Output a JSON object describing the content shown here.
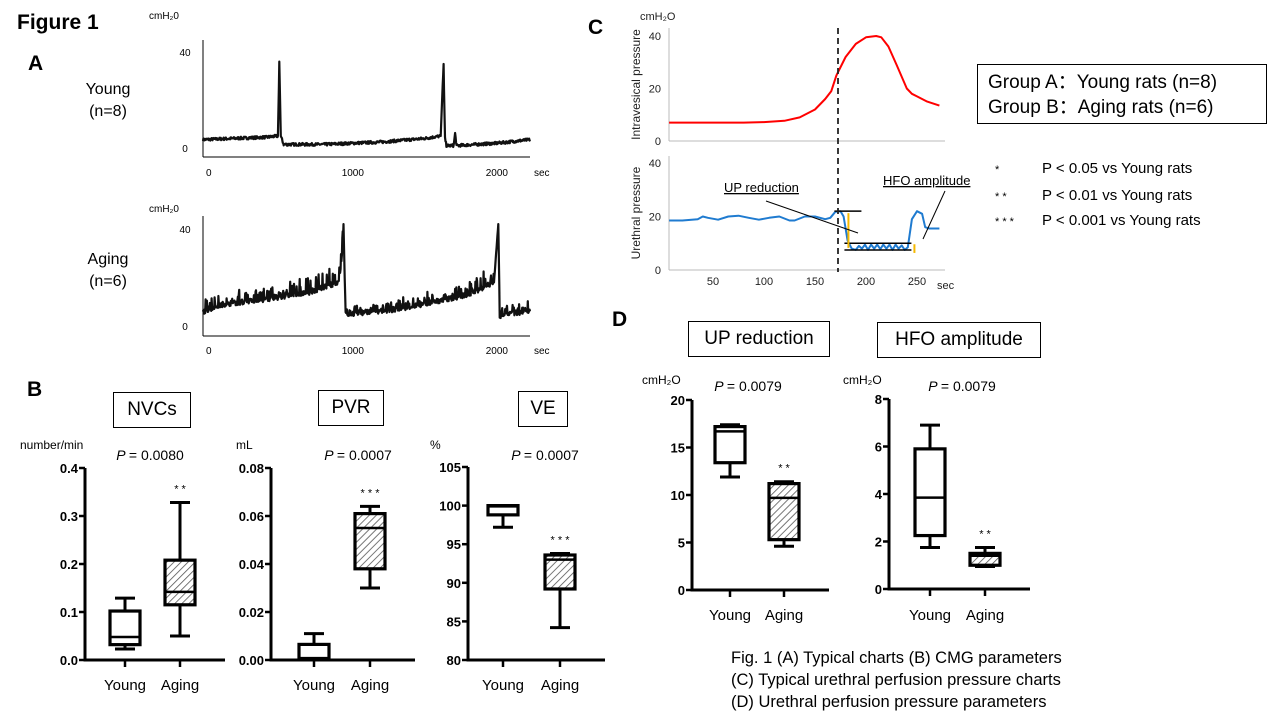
{
  "figure": {
    "title": "Figure 1",
    "panels": {
      "A": "A",
      "B": "B",
      "C": "C",
      "D": "D"
    },
    "caption": [
      "Fig. 1 (A) Typical charts (B) CMG parameters",
      "(C) Typical urethral perfusion pressure charts",
      "(D) Urethral perfusion pressure parameters"
    ],
    "groups_legend": [
      "Group A：Young  rats (n=8)",
      "Group B：Aging  rats (n=6)"
    ],
    "significance_legend": [
      {
        "marker": "*",
        "text": "P < 0.05 vs Young  rats"
      },
      {
        "marker": "* *",
        "text": "P < 0.01 vs Young  rats"
      },
      {
        "marker": "* * *",
        "text": "P < 0.001 vs Young  rats"
      }
    ]
  },
  "chart_data": [
    {
      "id": "A-young",
      "type": "line",
      "panel": "A",
      "group_label": [
        "Young",
        "(n=8)"
      ],
      "ylabel": "cmH₂0",
      "xlabel": "sec",
      "xlim": [
        -40,
        2230
      ],
      "ylim": [
        -3,
        45
      ],
      "yticks": [
        0,
        40
      ],
      "xticks": [
        0,
        1000,
        2000
      ],
      "description": "Cystometrogram trace, baseline ~2-4 cmH2O with voiding spikes",
      "x": [
        -40,
        400,
        480,
        490,
        500,
        520,
        800,
        1200,
        1500,
        1610,
        1630,
        1640,
        1650,
        1670,
        1700,
        1710,
        1720,
        2000,
        2230
      ],
      "y": [
        3.5,
        4.5,
        5,
        36,
        5,
        1.5,
        1.5,
        2.5,
        4,
        5,
        35,
        4,
        1,
        1,
        1,
        6,
        1,
        2,
        3.5
      ],
      "spikes": [
        {
          "x": 490,
          "y": 36
        },
        {
          "x": 1640,
          "y": 35
        }
      ]
    },
    {
      "id": "A-aging",
      "type": "line",
      "panel": "A",
      "group_label": [
        "Aging",
        "(n=6)"
      ],
      "ylabel": "cmH₂0",
      "xlabel": "sec",
      "xlim": [
        -40,
        2230
      ],
      "ylim": [
        -3,
        45
      ],
      "yticks": [
        0,
        40
      ],
      "xticks": [
        0,
        1000,
        2000
      ],
      "description": "Cystometrogram trace with non-voiding contractions and rising baseline",
      "x": [
        -40,
        100,
        400,
        700,
        900,
        930,
        935,
        950,
        1200,
        1500,
        1800,
        1980,
        2010,
        2020,
        2040,
        2230
      ],
      "y": [
        6,
        9,
        11,
        14,
        18,
        30,
        42,
        5,
        6,
        9,
        13,
        18,
        42,
        4,
        5,
        6
      ],
      "spikes": [
        {
          "x": 935,
          "y": 42
        },
        {
          "x": 2010,
          "y": 42
        }
      ]
    },
    {
      "id": "B-nvcs",
      "type": "box",
      "panel": "B",
      "title": "NVCs",
      "ylabel": "number/min",
      "p_value_label": "P",
      "p_value": "= 0.0080",
      "ylim": [
        0,
        0.4
      ],
      "yticks": [
        "0.0",
        "0.1",
        "0.2",
        "0.3",
        "0.4"
      ],
      "ytick_values": [
        0,
        0.1,
        0.2,
        0.3,
        0.4
      ],
      "categories": [
        "Young",
        "Aging"
      ],
      "boxes": [
        {
          "name": "Young",
          "min": 0.023,
          "q1": 0.032,
          "median": 0.048,
          "q3": 0.102,
          "max": 0.129,
          "hatched": false,
          "sig": ""
        },
        {
          "name": "Aging",
          "min": 0.05,
          "q1": 0.115,
          "median": 0.142,
          "q3": 0.208,
          "max": 0.328,
          "hatched": true,
          "sig": "* *"
        }
      ]
    },
    {
      "id": "B-pvr",
      "type": "box",
      "panel": "B",
      "title": "PVR",
      "ylabel": "mL",
      "p_value_label": "P",
      "p_value": "= 0.0007",
      "ylim": [
        0,
        0.08
      ],
      "yticks": [
        "0.00",
        "0.02",
        "0.04",
        "0.06",
        "0.08"
      ],
      "ytick_values": [
        0,
        0.02,
        0.04,
        0.06,
        0.08
      ],
      "categories": [
        "Young",
        "Aging"
      ],
      "boxes": [
        {
          "name": "Young",
          "min": 0.0,
          "q1": 0.0005,
          "median": 0.0008,
          "q3": 0.0065,
          "max": 0.011,
          "hatched": false,
          "sig": ""
        },
        {
          "name": "Aging",
          "min": 0.03,
          "q1": 0.038,
          "median": 0.055,
          "q3": 0.061,
          "max": 0.064,
          "hatched": true,
          "sig": "* * *"
        }
      ]
    },
    {
      "id": "B-ve",
      "type": "box",
      "panel": "B",
      "title": "VE",
      "ylabel": "%",
      "p_value_label": "P",
      "p_value": "= 0.0007",
      "ylim": [
        80,
        105
      ],
      "yticks": [
        "80",
        "85",
        "90",
        "95",
        "100",
        "105"
      ],
      "ytick_values": [
        80,
        85,
        90,
        95,
        100,
        105
      ],
      "categories": [
        "Young",
        "Aging"
      ],
      "boxes": [
        {
          "name": "Young",
          "min": 97.2,
          "q1": 98.8,
          "median": 99.9,
          "q3": 100,
          "max": 100,
          "hatched": false,
          "sig": ""
        },
        {
          "name": "Aging",
          "min": 84.2,
          "q1": 89.2,
          "median": 93.0,
          "q3": 93.6,
          "max": 93.8,
          "hatched": true,
          "sig": "* * *"
        }
      ]
    },
    {
      "id": "C-intravesical",
      "type": "line",
      "panel": "C",
      "ylabel": "Intravesical pressure",
      "unit": "cmH₂O",
      "xlim": [
        7,
        272
      ],
      "ylim": [
        0,
        42
      ],
      "yticks": [
        0,
        20,
        40
      ],
      "color": "#ff0000",
      "marker_x": 171,
      "x": [
        7,
        40,
        80,
        100,
        120,
        135,
        150,
        160,
        166,
        171,
        180,
        190,
        200,
        210,
        215,
        222,
        230,
        240,
        245,
        250,
        260,
        272
      ],
      "y": [
        7,
        7,
        7,
        7.2,
        7.7,
        9,
        12,
        16,
        19,
        25,
        32,
        37,
        39.5,
        40,
        39.5,
        36,
        29,
        20,
        18,
        17,
        15,
        13.5
      ]
    },
    {
      "id": "C-urethral",
      "type": "line",
      "panel": "C",
      "ylabel": "Urethral pressure",
      "xlabel": "sec",
      "xlim": [
        7,
        272
      ],
      "ylim": [
        0,
        42
      ],
      "yticks": [
        0,
        20,
        40
      ],
      "xticks": [
        50,
        100,
        150,
        200,
        250
      ],
      "color": "#1f7bd0",
      "marker_x": 171,
      "annotations": [
        "UP reduction",
        "HFO amplitude"
      ],
      "x": [
        7,
        20,
        35,
        40,
        45,
        55,
        65,
        75,
        85,
        95,
        105,
        115,
        125,
        130,
        140,
        150,
        160,
        165,
        170,
        175,
        178,
        182,
        186,
        190,
        193,
        196,
        199,
        202,
        205,
        208,
        211,
        214,
        217,
        220,
        223,
        226,
        229,
        232,
        235,
        238,
        241,
        245,
        250,
        255,
        258,
        262,
        272
      ],
      "y": [
        18.5,
        18.5,
        19,
        20,
        19.5,
        18.8,
        20,
        20.3,
        19.5,
        18.8,
        19.5,
        20,
        18.5,
        18.5,
        20,
        20,
        19,
        19.5,
        21.8,
        22,
        20,
        11,
        8,
        7.5,
        9,
        8,
        9.5,
        7.5,
        9.5,
        8,
        9.5,
        7.8,
        9.5,
        8,
        9.5,
        7.5,
        9.5,
        8,
        9.2,
        7.5,
        8.5,
        19,
        22,
        21,
        16,
        15.5,
        15.5
      ],
      "up_reduction": {
        "from": 22.0,
        "to": 7.5
      },
      "hfo_amplitude": {
        "from": 10.0,
        "to": 7.5
      }
    },
    {
      "id": "D-up-reduction",
      "type": "box",
      "panel": "D",
      "title": "UP reduction",
      "ylabel": "cmH₂O",
      "p_value_label": "P",
      "p_value": "= 0.0079",
      "ylim": [
        0,
        20
      ],
      "yticks": [
        "0",
        "5",
        "10",
        "15",
        "20"
      ],
      "ytick_values": [
        0,
        5,
        10,
        15,
        20
      ],
      "categories": [
        "Young",
        "Aging"
      ],
      "boxes": [
        {
          "name": "Young",
          "min": 11.9,
          "q1": 13.4,
          "median": 16.7,
          "q3": 17.2,
          "max": 17.4,
          "hatched": false,
          "sig": ""
        },
        {
          "name": "Aging",
          "min": 4.6,
          "q1": 5.3,
          "median": 9.7,
          "q3": 11.2,
          "max": 11.4,
          "hatched": true,
          "sig": "* *"
        }
      ]
    },
    {
      "id": "D-hfo-amplitude",
      "type": "box",
      "panel": "D",
      "title": "HFO amplitude",
      "ylabel": "cmH₂O",
      "p_value_label": "P",
      "p_value": "= 0.0079",
      "ylim": [
        0,
        8
      ],
      "yticks": [
        "0",
        "2",
        "4",
        "6",
        "8"
      ],
      "ytick_values": [
        0,
        2,
        4,
        6,
        8
      ],
      "categories": [
        "Young",
        "Aging"
      ],
      "boxes": [
        {
          "name": "Young",
          "min": 1.75,
          "q1": 2.25,
          "median": 3.85,
          "q3": 5.9,
          "max": 6.9,
          "hatched": false,
          "sig": ""
        },
        {
          "name": "Aging",
          "min": 0.95,
          "q1": 1.0,
          "median": 1.4,
          "q3": 1.5,
          "max": 1.75,
          "hatched": true,
          "sig": "* *"
        }
      ]
    }
  ]
}
